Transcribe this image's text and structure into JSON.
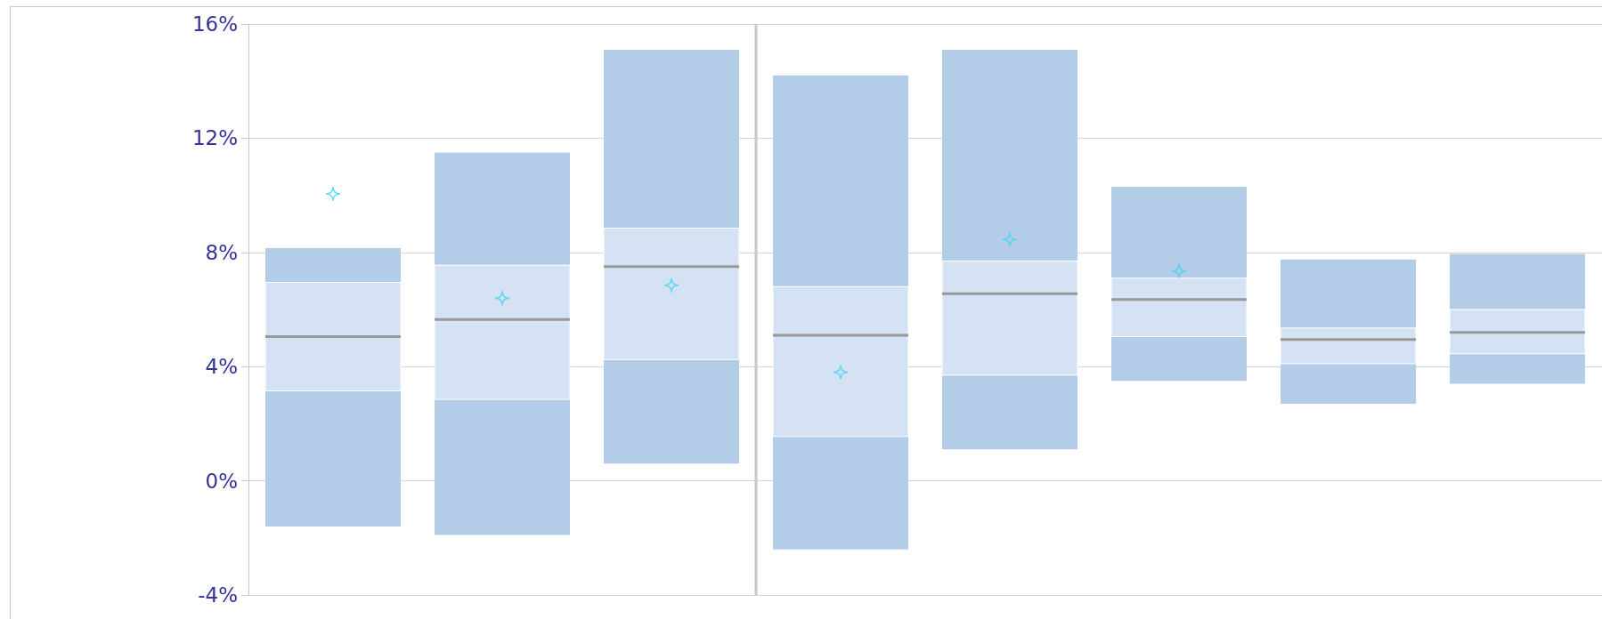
{
  "chart_data": {
    "type": "box",
    "categories": [
      null,
      null,
      null,
      null,
      null,
      null,
      null,
      null
    ],
    "series": [
      {
        "type": "box",
        "color": "#d4e2f3",
        "boxes": [
          {
            "low": -1.6,
            "q1": 3.15,
            "median": 5.05,
            "q3": 6.95,
            "high": 8.15,
            "mean": 10.05
          },
          {
            "low": -1.9,
            "q1": 2.85,
            "median": 5.65,
            "q3": 7.55,
            "high": 11.5,
            "mean": 6.4
          },
          {
            "low": 0.6,
            "q1": 4.25,
            "median": 7.5,
            "q3": 8.85,
            "high": 15.1,
            "mean": 6.85
          },
          {
            "low": -2.4,
            "q1": 1.55,
            "median": 5.1,
            "q3": 6.8,
            "high": 14.2,
            "mean": 3.8
          },
          {
            "low": 1.1,
            "q1": 3.7,
            "median": 6.55,
            "q3": 7.7,
            "high": 15.1,
            "mean": 8.45
          },
          {
            "low": 3.5,
            "q1": 5.05,
            "median": 6.35,
            "q3": 7.1,
            "high": 10.3,
            "mean": 7.35
          },
          {
            "low": 2.7,
            "q1": 4.1,
            "median": 4.95,
            "q3": 5.35,
            "high": 7.75
          },
          {
            "low": 3.4,
            "q1": 4.45,
            "median": 5.2,
            "q3": 6.0,
            "high": 7.95
          }
        ]
      }
    ],
    "ylim": [
      -4,
      16
    ],
    "yticks": [
      {
        "value": -4,
        "label": "-4%"
      },
      {
        "value": 0,
        "label": "0%"
      },
      {
        "value": 4,
        "label": "4%"
      },
      {
        "value": 8,
        "label": "8%"
      },
      {
        "value": 12,
        "label": "12%"
      },
      {
        "value": 16,
        "label": "16%"
      }
    ],
    "grid": "y",
    "marker": "star"
  }
}
